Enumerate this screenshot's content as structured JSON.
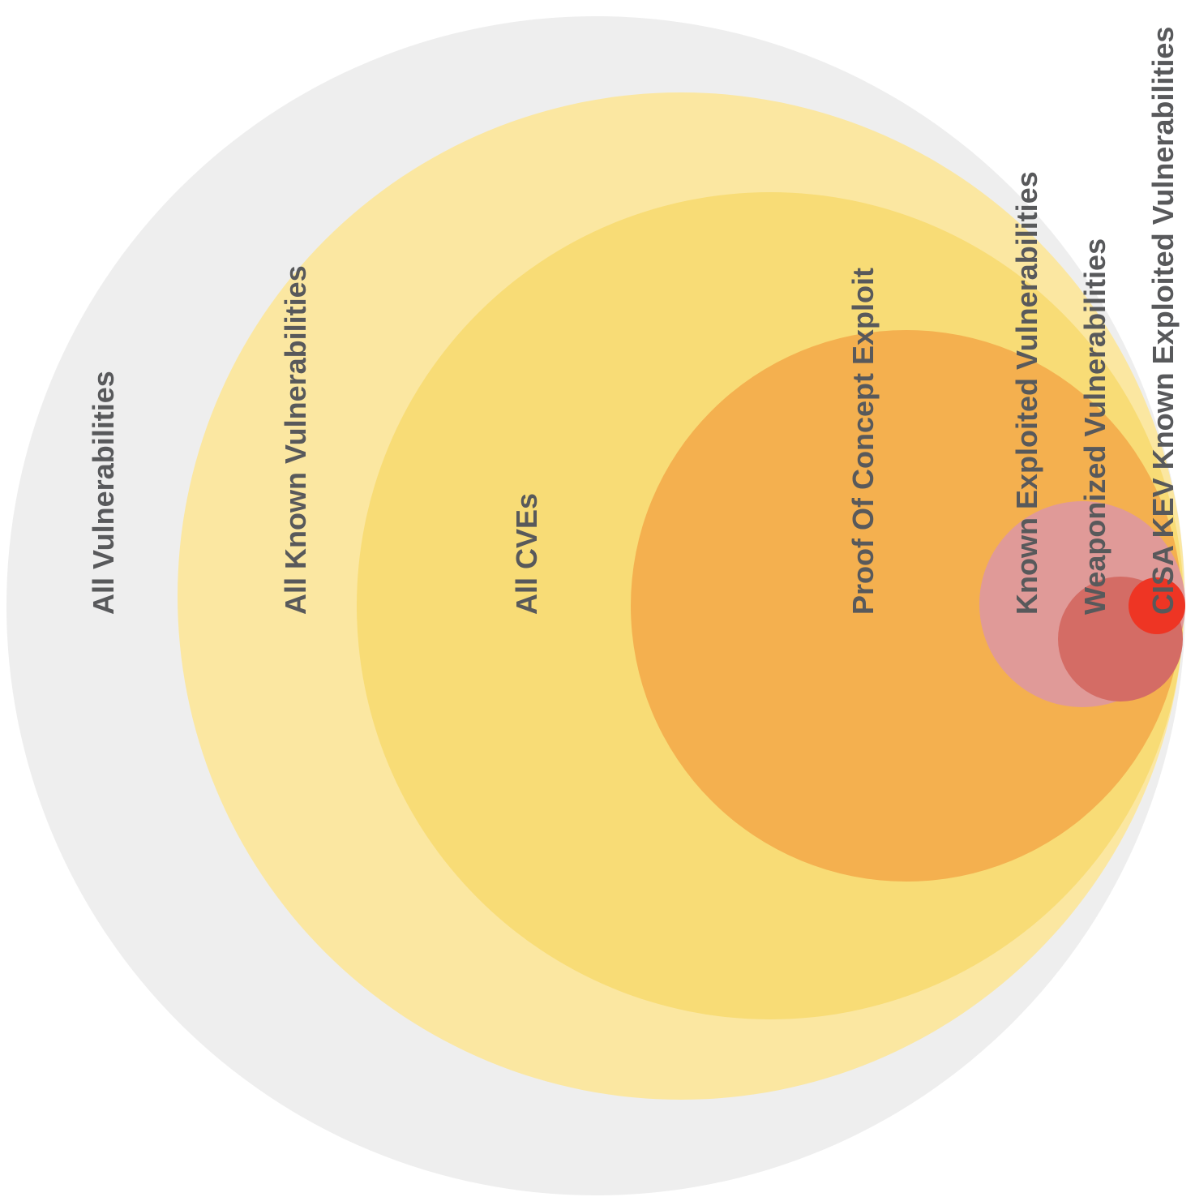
{
  "diagram": {
    "type": "nested-circles",
    "sets": [
      {
        "key": "all_vulnerabilities",
        "label": "All Vulnerabilities",
        "color": "#eeeeee"
      },
      {
        "key": "all_known_vulnerabilities",
        "label": "All Known Vulnerabilities",
        "color": "#fbe7a1"
      },
      {
        "key": "all_cves",
        "label": "All CVEs",
        "color": "#f8dc76"
      },
      {
        "key": "proof_of_concept_exploit",
        "label": "Proof Of Concept Exploit",
        "color": "#f4b04f"
      },
      {
        "key": "known_exploited_vulnerabilities",
        "label": "Known Exploited Vulnerabilities",
        "color": "#e09a98"
      },
      {
        "key": "weaponized_vulnerabilities",
        "label": "Weaponized Vulnerabilities",
        "color": "#d46c65"
      },
      {
        "key": "cisa_kev",
        "label": "CISA KEV Known Exploited Vulnerabilities",
        "color": "#ee3524"
      }
    ]
  }
}
